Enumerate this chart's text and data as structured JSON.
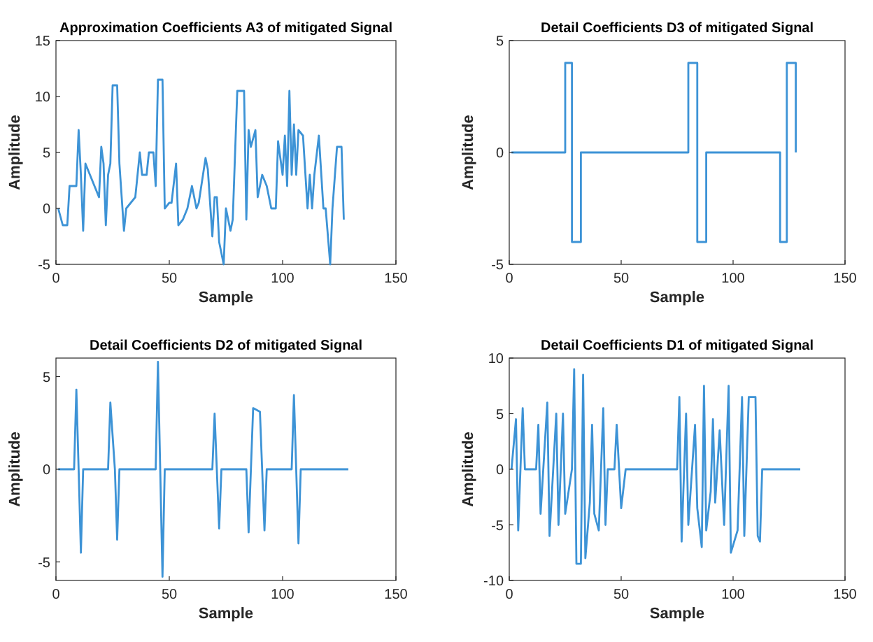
{
  "chart_data": [
    {
      "type": "line",
      "title": "Approximation Coefficients A3 of mitigated Signal",
      "xlabel": "Sample",
      "ylabel": "Amplitude",
      "xlim": [
        0,
        150
      ],
      "ylim": [
        -5,
        15
      ],
      "xticks": [
        0,
        50,
        100,
        150
      ],
      "yticks": [
        -5,
        0,
        5,
        10,
        15
      ],
      "series": [
        {
          "color": "#3d93d6",
          "x": [
            1,
            3,
            5,
            6,
            9,
            10,
            11,
            12,
            13,
            15,
            17,
            19,
            20,
            21,
            22,
            23,
            24,
            25,
            27,
            28,
            30,
            31,
            33,
            35,
            37,
            38,
            40,
            41,
            43,
            44,
            45,
            47,
            48,
            50,
            51,
            53,
            54,
            56,
            58,
            60,
            62,
            63,
            66,
            67,
            69,
            70,
            71,
            72,
            74,
            75,
            77,
            78,
            80,
            83,
            84,
            85,
            86,
            88,
            89,
            91,
            93,
            95,
            97,
            98,
            100,
            101,
            102,
            103,
            104,
            105,
            106,
            107,
            109,
            111,
            112,
            113,
            114,
            116,
            118,
            119,
            121,
            122,
            124,
            126,
            127
          ],
          "values": [
            0,
            -1.5,
            -1.5,
            2,
            2,
            7,
            3,
            -2,
            4,
            3,
            2,
            1,
            5.5,
            4,
            -1.5,
            3,
            4,
            11,
            11,
            4,
            -2,
            0,
            0.5,
            1,
            5,
            3,
            3,
            5,
            5,
            2,
            11.5,
            11.5,
            0,
            0.5,
            0.5,
            4,
            -1.5,
            -1,
            0,
            2,
            0,
            0.5,
            4.5,
            3.5,
            -2.5,
            1,
            1,
            -3,
            -5,
            0,
            -2,
            -1,
            10.5,
            10.5,
            -1,
            7,
            5.5,
            7,
            1,
            3,
            2,
            0,
            0,
            6,
            3,
            6.5,
            2,
            10.5,
            3,
            7.5,
            3,
            7,
            6.5,
            0,
            3,
            0,
            3,
            6.5,
            0,
            0,
            -5,
            0,
            5.5,
            5.5,
            -1
          ]
        }
      ]
    },
    {
      "type": "line",
      "title": "Detail Coefficients D3 of mitigated Signal",
      "xlabel": "Sample",
      "ylabel": "Amplitude",
      "xlim": [
        0,
        150
      ],
      "ylim": [
        -5,
        5
      ],
      "xticks": [
        0,
        50,
        100,
        150
      ],
      "yticks": [
        -5,
        0,
        5
      ],
      "series": [
        {
          "color": "#3d93d6",
          "x": [
            1,
            25,
            25,
            28,
            28,
            32,
            32,
            80,
            80,
            84,
            84,
            88,
            88,
            121,
            121,
            124,
            124,
            128,
            128
          ],
          "values": [
            0,
            0,
            4,
            4,
            -4,
            -4,
            0,
            0,
            4,
            4,
            -4,
            -4,
            0,
            0,
            -4,
            -4,
            4,
            4,
            0
          ]
        }
      ]
    },
    {
      "type": "line",
      "title": "Detail Coefficients D2 of mitigated Signal",
      "xlabel": "Sample",
      "ylabel": "Amplitude",
      "xlim": [
        0,
        150
      ],
      "ylim": [
        -6,
        6
      ],
      "xticks": [
        0,
        50,
        100,
        150
      ],
      "yticks": [
        -5,
        0,
        5
      ],
      "series": [
        {
          "color": "#3d93d6",
          "x": [
            1,
            8,
            9,
            10,
            11,
            12,
            23,
            24,
            26,
            27,
            28,
            44,
            45,
            47,
            48,
            69,
            70,
            72,
            73,
            84,
            85,
            87,
            90,
            92,
            93,
            104,
            105,
            107,
            108,
            129
          ],
          "values": [
            0,
            0,
            4.3,
            0,
            -4.5,
            0,
            0,
            3.6,
            0,
            -3.8,
            0,
            0,
            5.8,
            -5.8,
            0,
            0,
            3,
            -3.2,
            0,
            0,
            -3.4,
            3.3,
            3.1,
            -3.3,
            0,
            0,
            4,
            -4,
            0,
            0
          ]
        }
      ]
    },
    {
      "type": "line",
      "title": "Detail Coefficients D1 of mitigated Signal",
      "xlabel": "Sample",
      "ylabel": "Amplitude",
      "xlim": [
        0,
        150
      ],
      "ylim": [
        -10,
        10
      ],
      "xticks": [
        0,
        50,
        100,
        150
      ],
      "yticks": [
        -10,
        -5,
        0,
        5,
        10
      ],
      "series": [
        {
          "color": "#3d93d6",
          "x": [
            1,
            3,
            4,
            6,
            7,
            12,
            13,
            14,
            17,
            18,
            21,
            22,
            24,
            25,
            28,
            29,
            30,
            32,
            33,
            34,
            36,
            37,
            38,
            40,
            42,
            43,
            44,
            47,
            48,
            50,
            52,
            55,
            75,
            76,
            77,
            79,
            80,
            83,
            84,
            86,
            87,
            88,
            90,
            91,
            92,
            94,
            96,
            98,
            99,
            102,
            104,
            105,
            107,
            110,
            111,
            112,
            113,
            130
          ],
          "values": [
            0,
            4.5,
            -5.5,
            5.5,
            0,
            0,
            4,
            -4,
            6,
            -6,
            5,
            -5,
            5,
            -4,
            0,
            9,
            -8.5,
            -8.5,
            8.5,
            -8,
            -3,
            4,
            -4,
            -5.5,
            5.5,
            -5,
            0,
            0,
            4,
            -3.5,
            0,
            0,
            0,
            6.5,
            -6.5,
            5,
            -5,
            4,
            -3.5,
            -7,
            7.5,
            -5.5,
            -2,
            4.5,
            -3,
            3.5,
            -5,
            7.5,
            -7.5,
            -5.5,
            6.5,
            -6,
            6.5,
            6.5,
            -6,
            -6.5,
            0,
            0
          ]
        }
      ]
    }
  ]
}
